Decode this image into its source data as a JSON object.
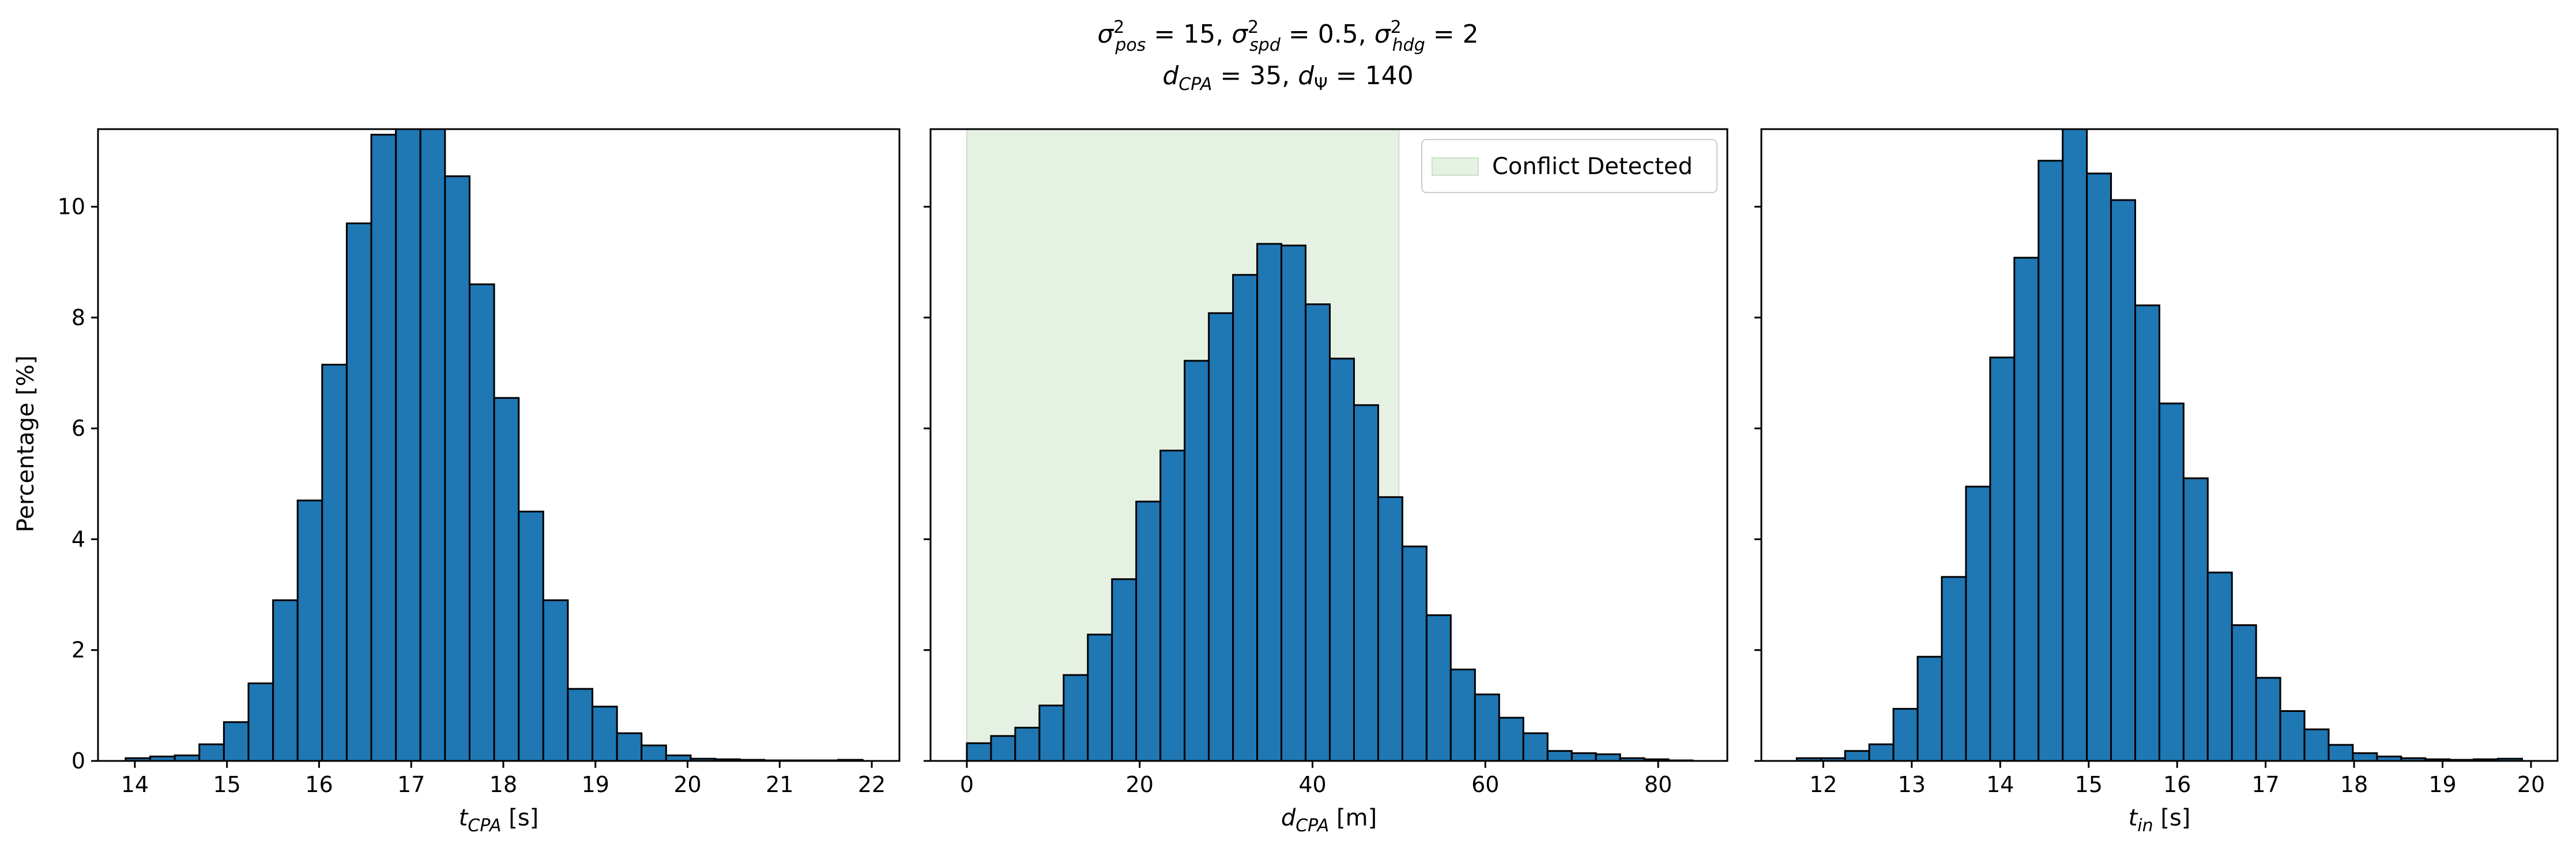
{
  "figure": {
    "title_line1": "σ²pos = 15, σ²spd = 0.5, σ²hdg = 2",
    "title_line2": "dCPA = 35, dΨ = 140"
  },
  "colors": {
    "bar_fill": "#1f77b4",
    "bar_edge": "#000000",
    "conflict_fill": "#e5f1e3",
    "conflict_edge": "#c8e2c4"
  },
  "chart_data": [
    {
      "type": "bar",
      "xlabel": "tCPA [s]",
      "ylabel": "Percentage [%]",
      "xlim": [
        13.6,
        22.3
      ],
      "ylim": [
        0,
        11.4
      ],
      "xticks": [
        14,
        15,
        16,
        17,
        18,
        19,
        20,
        21,
        22
      ],
      "yticks": [
        0,
        2,
        4,
        6,
        8,
        10
      ],
      "bin_start": 13.9,
      "bin_width": 0.2667,
      "values": [
        0.05,
        0.08,
        0.1,
        0.3,
        0.7,
        1.4,
        2.9,
        4.7,
        7.15,
        9.7,
        11.3,
        11.45,
        11.4,
        10.55,
        8.6,
        6.55,
        4.5,
        2.9,
        1.3,
        0.98,
        0.5,
        0.28,
        0.1,
        0.04,
        0.03,
        0.02,
        0.01,
        0.01,
        0.01,
        0.02
      ]
    },
    {
      "type": "bar",
      "xlabel": "dCPA [m]",
      "ylabel": "",
      "xlim": [
        -4.2,
        88.0
      ],
      "ylim": [
        0,
        11.4
      ],
      "xticks": [
        0,
        20,
        40,
        60,
        80
      ],
      "yticks": [
        0,
        2,
        4,
        6,
        8,
        10
      ],
      "bin_start": 0,
      "bin_width": 2.8,
      "values": [
        0.32,
        0.45,
        0.6,
        1.0,
        1.55,
        2.28,
        3.28,
        4.68,
        5.6,
        7.22,
        8.08,
        8.77,
        9.33,
        9.3,
        8.24,
        7.26,
        6.42,
        4.76,
        3.87,
        2.63,
        1.65,
        1.2,
        0.78,
        0.5,
        0.18,
        0.14,
        0.12,
        0.05,
        0.03,
        0.01
      ],
      "shaded_region": [
        0,
        50
      ],
      "legend": {
        "label": "Conflict Detected",
        "loc": "upper right"
      }
    },
    {
      "type": "bar",
      "xlabel": "tin [s]",
      "ylabel": "",
      "xlim": [
        11.3,
        20.3
      ],
      "ylim": [
        0,
        11.4
      ],
      "xticks": [
        12,
        13,
        14,
        15,
        16,
        17,
        18,
        19,
        20
      ],
      "yticks": [
        0,
        2,
        4,
        6,
        8,
        10
      ],
      "bin_start": 11.7,
      "bin_width": 0.2733,
      "values": [
        0.05,
        0.05,
        0.18,
        0.3,
        0.94,
        1.88,
        3.32,
        4.95,
        7.28,
        9.08,
        10.83,
        11.5,
        10.6,
        10.12,
        8.22,
        6.45,
        5.1,
        3.4,
        2.45,
        1.5,
        0.9,
        0.57,
        0.29,
        0.14,
        0.08,
        0.05,
        0.03,
        0.02,
        0.03,
        0.04
      ]
    }
  ]
}
